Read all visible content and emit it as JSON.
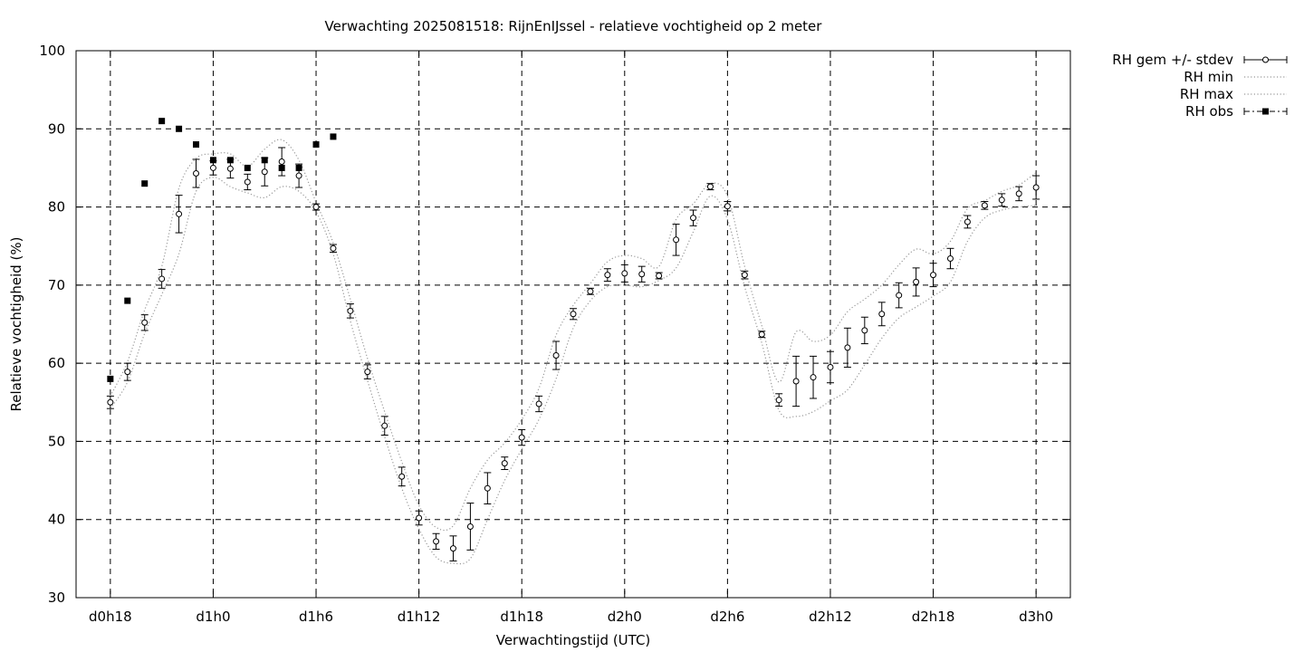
{
  "chart_data": {
    "type": "line",
    "title": "Verwachting 2025081518: RijnEnIJssel - relatieve vochtigheid op 2 meter",
    "xlabel": "Verwachtingstijd (UTC)",
    "ylabel": "Relatieve vochtigheid (%)",
    "ylim": [
      30,
      100
    ],
    "xlim_hours": [
      -2,
      56
    ],
    "yticks": [
      30,
      40,
      50,
      60,
      70,
      80,
      90,
      100
    ],
    "xticks": [
      {
        "h": 0,
        "label": "d0h18"
      },
      {
        "h": 6,
        "label": "d1h0"
      },
      {
        "h": 12,
        "label": "d1h6"
      },
      {
        "h": 18,
        "label": "d1h12"
      },
      {
        "h": 24,
        "label": "d1h18"
      },
      {
        "h": 30,
        "label": "d2h0"
      },
      {
        "h": 36,
        "label": "d2h6"
      },
      {
        "h": 42,
        "label": "d2h12"
      },
      {
        "h": 48,
        "label": "d2h18"
      },
      {
        "h": 54,
        "label": "d3h0"
      }
    ],
    "grid": true,
    "legend_position": "outside-right-top",
    "legend": [
      {
        "label": "RH gem +/- stdev",
        "style": "errorbar-open-circle"
      },
      {
        "label": "RH min",
        "style": "dotted"
      },
      {
        "label": "RH max",
        "style": "dotted"
      },
      {
        "label": "RH obs",
        "style": "dash-dot-filled-square"
      }
    ],
    "x_hours": [
      0,
      1,
      2,
      3,
      4,
      5,
      6,
      7,
      8,
      9,
      10,
      11,
      12,
      13,
      14,
      15,
      16,
      17,
      18,
      19,
      20,
      21,
      22,
      23,
      24,
      25,
      26,
      27,
      28,
      29,
      30,
      31,
      32,
      33,
      34,
      35,
      36,
      37,
      38,
      39,
      40,
      41,
      42,
      43,
      44,
      45,
      46,
      47,
      48,
      49,
      50,
      51,
      52,
      53,
      54
    ],
    "series": [
      {
        "name": "RH gem +/- stdev",
        "values": [
          55.0,
          58.9,
          65.2,
          70.8,
          79.1,
          84.3,
          85.0,
          84.9,
          83.2,
          84.5,
          85.8,
          84.0,
          80.0,
          74.7,
          66.7,
          58.9,
          52.0,
          45.5,
          40.2,
          37.2,
          36.3,
          39.1,
          44.0,
          47.2,
          50.5,
          54.8,
          61.0,
          66.3,
          69.2,
          71.3,
          71.5,
          71.4,
          71.2,
          75.8,
          78.6,
          82.6,
          80.1,
          71.3,
          63.7,
          55.3,
          57.7,
          58.2,
          59.5,
          62.0,
          64.2,
          66.3,
          68.7,
          70.4,
          71.3,
          73.4,
          78.1,
          80.2,
          80.9,
          81.7,
          82.5
        ],
        "stdev": [
          0.8,
          1.1,
          1.0,
          1.2,
          2.4,
          1.8,
          0.9,
          1.2,
          1.0,
          1.8,
          1.8,
          1.5,
          0.4,
          0.5,
          0.9,
          0.9,
          1.2,
          1.2,
          0.9,
          1.0,
          1.6,
          3.0,
          2.0,
          0.8,
          1.0,
          1.0,
          1.8,
          0.7,
          0.4,
          0.8,
          1.1,
          1.0,
          0.4,
          2.0,
          1.0,
          0.4,
          0.6,
          0.5,
          0.4,
          0.8,
          3.2,
          2.7,
          2.0,
          2.5,
          1.7,
          1.5,
          1.6,
          1.8,
          1.5,
          1.3,
          0.8,
          0.5,
          0.8,
          0.9,
          1.5
        ]
      },
      {
        "name": "RH min",
        "values": [
          54.2,
          57.6,
          63.8,
          68.8,
          74.0,
          82.0,
          83.8,
          82.6,
          81.8,
          81.2,
          82.6,
          82.0,
          79.4,
          74.0,
          65.4,
          57.8,
          50.6,
          44.0,
          38.8,
          35.2,
          34.4,
          35.0,
          40.0,
          45.0,
          49.0,
          52.8,
          58.0,
          64.5,
          68.0,
          69.8,
          70.0,
          69.8,
          70.6,
          72.2,
          76.8,
          81.4,
          78.4,
          69.8,
          62.6,
          54.0,
          53.2,
          53.8,
          55.2,
          56.6,
          59.8,
          63.2,
          65.8,
          67.2,
          68.6,
          70.4,
          75.6,
          78.6,
          79.6,
          80.0,
          80.2
        ]
      },
      {
        "name": "RH max",
        "values": [
          55.8,
          60.2,
          66.8,
          72.4,
          82.4,
          86.2,
          86.8,
          86.8,
          85.2,
          87.4,
          88.6,
          86.0,
          80.6,
          75.4,
          68.2,
          60.6,
          53.8,
          47.4,
          41.8,
          39.0,
          39.2,
          44.0,
          47.6,
          49.8,
          52.8,
          56.8,
          63.6,
          67.4,
          70.2,
          73.0,
          73.8,
          73.4,
          72.4,
          78.4,
          80.4,
          83.0,
          81.4,
          72.4,
          64.8,
          57.6,
          64.0,
          62.8,
          63.6,
          66.6,
          68.2,
          70.0,
          72.6,
          74.6,
          74.0,
          75.6,
          79.8,
          80.8,
          82.0,
          82.8,
          84.4
        ]
      },
      {
        "name": "RH obs",
        "x_hours": [
          0,
          1,
          2,
          3,
          4,
          5,
          6,
          7,
          8,
          9,
          10,
          11,
          12,
          13
        ],
        "values": [
          58,
          68,
          83,
          91,
          90,
          88,
          86,
          86,
          85,
          86,
          85,
          85,
          88,
          89
        ]
      }
    ]
  }
}
